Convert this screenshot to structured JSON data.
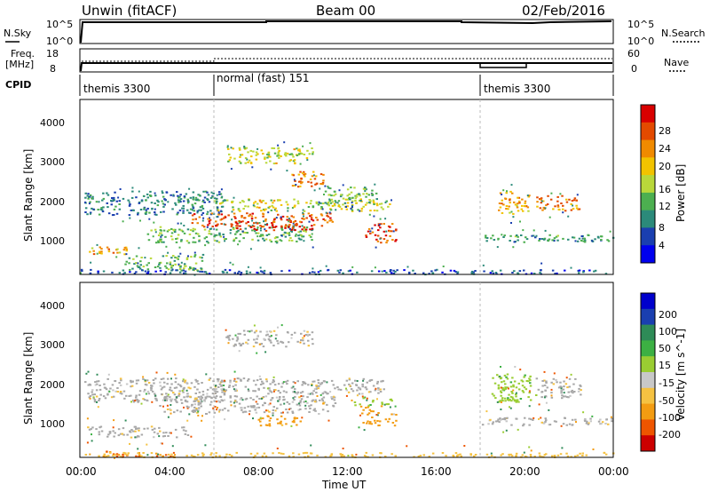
{
  "header": {
    "station": "Unwin (fitACF)",
    "beam": "Beam 00",
    "date": "02/Feb/2016"
  },
  "summary": {
    "nsky_label": "N.Sky",
    "nsky_ticks": [
      "10^5",
      "10^0"
    ],
    "nsearch_label": "N.Search",
    "nsearch_ticks": [
      "10^5",
      "10^0"
    ],
    "freq_label": "Freq.",
    "freq_unit": "[MHz]",
    "freq_ticks": [
      "18",
      "8"
    ],
    "nave_label": "Nave",
    "nave_ticks": [
      "60",
      "0"
    ],
    "cpid_label": "CPID",
    "cpid_segments": [
      {
        "start": 0,
        "end": 6,
        "label": "themis 3300"
      },
      {
        "start": 6,
        "end": 18,
        "label": "normal (fast) 151"
      },
      {
        "start": 18,
        "end": 24,
        "label": "themis 3300"
      }
    ]
  },
  "colors": {
    "power_scale": [
      "#0000ee",
      "#1a3fb0",
      "#2b8a7a",
      "#4caf50",
      "#b9d83a",
      "#f2c300",
      "#f08a00",
      "#e34a00",
      "#d90000"
    ],
    "velocity_scale": [
      "#cc0000",
      "#ee5500",
      "#f39c12",
      "#f5c242",
      "#c8c8c8",
      "#9acd32",
      "#3cb043",
      "#2e8b57",
      "#1a3fb0",
      "#0000cc"
    ],
    "ground_scatter": "#a8a8a8"
  },
  "chart_data": [
    {
      "type": "heatmap",
      "panel": "power",
      "ylabel": "Slant Range [km]",
      "xlabel": "",
      "xlim": [
        0,
        24
      ],
      "ylim": [
        180,
        4600
      ],
      "yticks": [
        "1000",
        "2000",
        "3000",
        "4000"
      ],
      "colorbar_label": "Power [dB]",
      "colorbar_ticks": [
        "4",
        "8",
        "12",
        "16",
        "20",
        "24",
        "28"
      ],
      "features": [
        {
          "t0": 0.3,
          "t1": 2.2,
          "r0": 700,
          "r1": 900,
          "value": 20
        },
        {
          "t0": 0.2,
          "t1": 6.5,
          "r0": 1700,
          "r1": 2300,
          "value": 8
        },
        {
          "t0": 2.0,
          "t1": 5.5,
          "r0": 300,
          "r1": 700,
          "value": 12
        },
        {
          "t0": 3.0,
          "t1": 10.5,
          "r0": 1000,
          "r1": 1400,
          "value": 12
        },
        {
          "t0": 5.0,
          "t1": 11.5,
          "r0": 1400,
          "r1": 1750,
          "value": 24
        },
        {
          "t0": 7.0,
          "t1": 10.5,
          "r0": 1300,
          "r1": 1500,
          "value": 28
        },
        {
          "t0": 6.0,
          "t1": 14.0,
          "r0": 1800,
          "r1": 2100,
          "value": 16
        },
        {
          "t0": 9.5,
          "t1": 11.0,
          "r0": 2400,
          "r1": 2800,
          "value": 22
        },
        {
          "t0": 6.5,
          "t1": 10.5,
          "r0": 3000,
          "r1": 3400,
          "value": 16
        },
        {
          "t0": 12.8,
          "t1": 14.2,
          "r0": 1000,
          "r1": 1500,
          "value": 26
        },
        {
          "t0": 11.0,
          "t1": 13.5,
          "r0": 2000,
          "r1": 2400,
          "value": 12
        },
        {
          "t0": 18.0,
          "t1": 24.0,
          "r0": 1000,
          "r1": 1200,
          "value": 10
        },
        {
          "t0": 18.8,
          "t1": 20.2,
          "r0": 1700,
          "r1": 2300,
          "value": 20
        },
        {
          "t0": 20.5,
          "t1": 22.5,
          "r0": 1800,
          "r1": 2200,
          "value": 22
        },
        {
          "t0": 0.0,
          "t1": 24.0,
          "r0": 200,
          "r1": 320,
          "value": 6
        }
      ]
    },
    {
      "type": "heatmap",
      "panel": "velocity",
      "ylabel": "Slant Range [km]",
      "xlabel": "Time UT",
      "xlim": [
        0,
        24
      ],
      "ylim": [
        180,
        4600
      ],
      "xticks": [
        "00:00",
        "04:00",
        "08:00",
        "12:00",
        "16:00",
        "20:00",
        "00:00"
      ],
      "yticks": [
        "1000",
        "2000",
        "3000",
        "4000"
      ],
      "colorbar_label": "Velocity [m s^-1]",
      "colorbar_ticks": [
        "-200",
        "-100",
        "-50",
        "-15",
        "15",
        "50",
        "100",
        "200"
      ],
      "features": [
        {
          "t0": 0.2,
          "t1": 6.5,
          "r0": 1600,
          "r1": 2200,
          "value": -5
        },
        {
          "t0": 0.3,
          "t1": 5.0,
          "r0": 700,
          "r1": 1000,
          "value": -5
        },
        {
          "t0": 3.5,
          "t1": 11.5,
          "r0": 1300,
          "r1": 1750,
          "value": -5
        },
        {
          "t0": 6.0,
          "t1": 13.8,
          "r0": 1800,
          "r1": 2200,
          "value": -5
        },
        {
          "t0": 6.5,
          "t1": 10.5,
          "r0": 3000,
          "r1": 3400,
          "value": -5
        },
        {
          "t0": 8.0,
          "t1": 10.0,
          "r0": 1000,
          "r1": 1250,
          "value": -60
        },
        {
          "t0": 12.5,
          "t1": 14.2,
          "r0": 1000,
          "r1": 1500,
          "value": -80
        },
        {
          "t0": 1.0,
          "t1": 4.5,
          "r0": 200,
          "r1": 350,
          "value": -100
        },
        {
          "t0": 12.3,
          "t1": 14.0,
          "r0": 1500,
          "r1": 1700,
          "value": 40
        },
        {
          "t0": 18.0,
          "t1": 24.0,
          "r0": 1000,
          "r1": 1200,
          "value": -5
        },
        {
          "t0": 18.5,
          "t1": 20.5,
          "r0": 1600,
          "r1": 2300,
          "value": 40
        },
        {
          "t0": 20.5,
          "t1": 22.5,
          "r0": 1700,
          "r1": 2200,
          "value": -5
        },
        {
          "t0": 0.0,
          "t1": 24.0,
          "r0": 200,
          "r1": 320,
          "value": -30
        }
      ]
    }
  ]
}
